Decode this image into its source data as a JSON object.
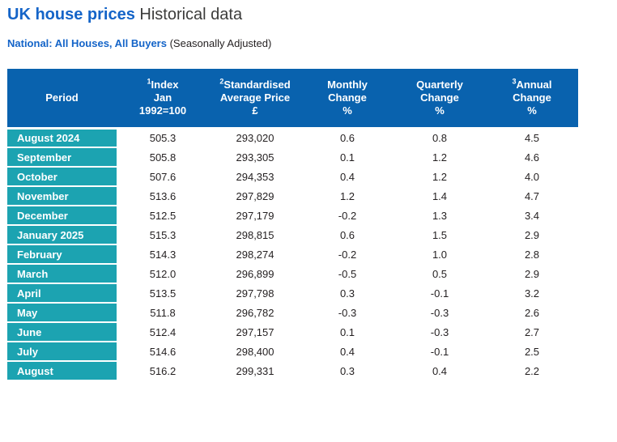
{
  "header": {
    "title_bold": "UK house prices",
    "title_rest": "Historical data",
    "subtitle_bold": "National: All Houses, All Buyers",
    "subtitle_rest": "(Seasonally Adjusted)"
  },
  "colors": {
    "title_blue": "#1464c8",
    "header_band_blue": "#0962ae",
    "period_teal": "#1ca3b1",
    "body_text": "#231f20"
  },
  "table": {
    "columns": [
      {
        "lines": [
          "Period"
        ]
      },
      {
        "sup": "1",
        "lines": [
          "Index",
          "Jan",
          "1992=100"
        ]
      },
      {
        "sup": "2",
        "lines": [
          "Standardised",
          "Average Price",
          "£"
        ]
      },
      {
        "lines": [
          "Monthly",
          "Change",
          "%"
        ]
      },
      {
        "lines": [
          "Quarterly",
          "Change",
          "%"
        ]
      },
      {
        "sup": "3",
        "lines": [
          "Annual",
          "Change",
          "%"
        ]
      }
    ],
    "rows": [
      {
        "period": "August 2024",
        "index": "505.3",
        "price": "293,020",
        "monthly": "0.6",
        "quarterly": "0.8",
        "annual": "4.5"
      },
      {
        "period": "September",
        "index": "505.8",
        "price": "293,305",
        "monthly": "0.1",
        "quarterly": "1.2",
        "annual": "4.6"
      },
      {
        "period": "October",
        "index": "507.6",
        "price": "294,353",
        "monthly": "0.4",
        "quarterly": "1.2",
        "annual": "4.0"
      },
      {
        "period": "November",
        "index": "513.6",
        "price": "297,829",
        "monthly": "1.2",
        "quarterly": "1.4",
        "annual": "4.7"
      },
      {
        "period": "December",
        "index": "512.5",
        "price": "297,179",
        "monthly": "-0.2",
        "quarterly": "1.3",
        "annual": "3.4"
      },
      {
        "period": "January 2025",
        "index": "515.3",
        "price": "298,815",
        "monthly": "0.6",
        "quarterly": "1.5",
        "annual": "2.9"
      },
      {
        "period": "February",
        "index": "514.3",
        "price": "298,274",
        "monthly": "-0.2",
        "quarterly": "1.0",
        "annual": "2.8"
      },
      {
        "period": "March",
        "index": "512.0",
        "price": "296,899",
        "monthly": "-0.5",
        "quarterly": "0.5",
        "annual": "2.9"
      },
      {
        "period": "April",
        "index": "513.5",
        "price": "297,798",
        "monthly": "0.3",
        "quarterly": "-0.1",
        "annual": "3.2"
      },
      {
        "period": "May",
        "index": "511.8",
        "price": "296,782",
        "monthly": "-0.3",
        "quarterly": "-0.3",
        "annual": "2.6"
      },
      {
        "period": "June",
        "index": "512.4",
        "price": "297,157",
        "monthly": "0.1",
        "quarterly": "-0.3",
        "annual": "2.7"
      },
      {
        "period": "July",
        "index": "514.6",
        "price": "298,400",
        "monthly": "0.4",
        "quarterly": "-0.1",
        "annual": "2.5"
      },
      {
        "period": "August",
        "index": "516.2",
        "price": "299,331",
        "monthly": "0.3",
        "quarterly": "0.4",
        "annual": "2.2"
      }
    ]
  }
}
